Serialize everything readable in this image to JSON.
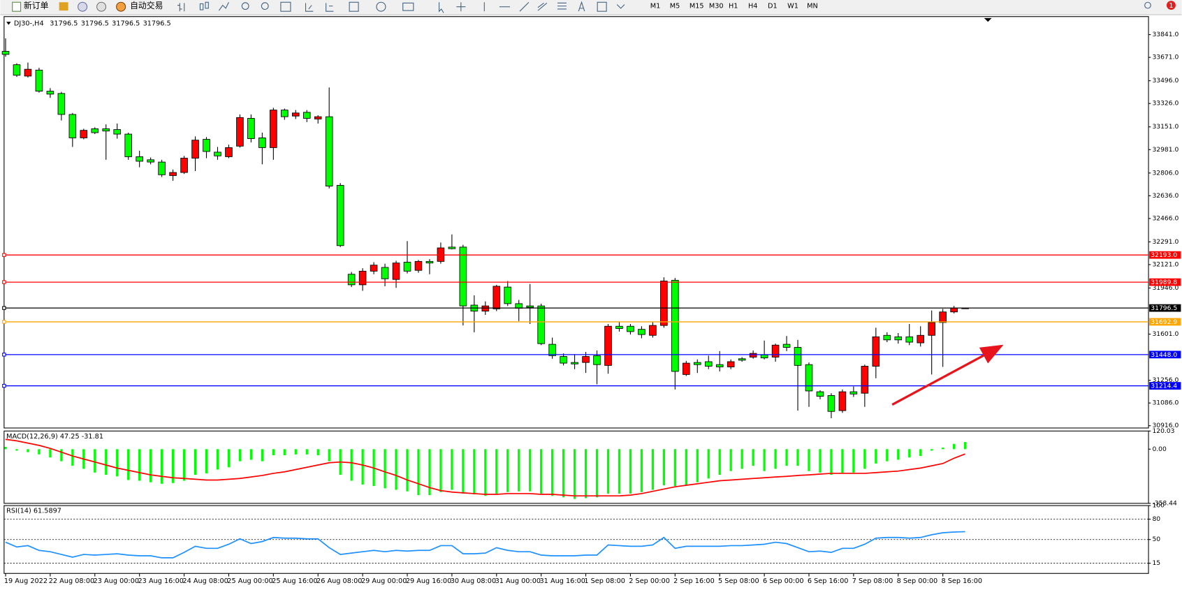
{
  "toolbar": {
    "new_order": "新订单",
    "auto_trading": "自动交易",
    "timeframes": [
      "M1",
      "M5",
      "M15",
      "M30",
      "H1",
      "H4",
      "D1",
      "W1",
      "MN"
    ],
    "notification_count": 1
  },
  "chart_data": [
    {
      "type": "candlestick",
      "title": "DJ30-,H4",
      "header_values": [
        31796.5,
        31796.5,
        31796.5,
        31796.5
      ],
      "categories": [
        "19 Aug 2022",
        null,
        null,
        null,
        "22 Aug 08:00",
        null,
        null,
        null,
        "23 Aug 00:00",
        null,
        null,
        null,
        "23 Aug 16:00",
        null,
        null,
        null,
        "24 Aug 08:00",
        null,
        null,
        null,
        "25 Aug 00:00",
        null,
        null,
        null,
        "25 Aug 16:00",
        null,
        null,
        null,
        "26 Aug 08:00",
        null,
        null,
        null,
        "29 Aug 00:00",
        null,
        null,
        null,
        "29 Aug 16:00",
        null,
        null,
        null,
        "30 Aug 08:00",
        null,
        null,
        null,
        "31 Aug 00:00",
        null,
        null,
        null,
        "31 Aug 16:00",
        null,
        null,
        null,
        "1 Sep 08:00",
        null,
        null,
        null,
        "2 Sep 00:00",
        null,
        null,
        null,
        "2 Sep 16:00",
        null,
        null,
        null,
        "5 Sep 08:00",
        null,
        null,
        null,
        "6 Sep 00:00",
        null,
        null,
        null,
        "6 Sep 16:00",
        null,
        null,
        null,
        "7 Sep 08:00",
        null,
        null,
        null,
        "8 Sep 00:00",
        null,
        null,
        null,
        "8 Sep 16:00",
        null,
        null
      ],
      "open": [
        33716,
        33616,
        33531,
        33576,
        33418,
        33401,
        33244,
        33069,
        33137,
        33137,
        33131,
        33097,
        32928,
        32905,
        32888,
        32787,
        32810,
        32917,
        33058,
        32962,
        32928,
        33007,
        33215,
        33069,
        32996,
        33277,
        33232,
        33260,
        33210,
        33227,
        32714,
        32049,
        31970,
        32072,
        32100,
        32010,
        32139,
        32078,
        32145,
        32145,
        32252,
        32252,
        31818,
        31773,
        31790,
        31953,
        31829,
        31812,
        31812,
        31525,
        31434,
        31389,
        31389,
        31440,
        31367,
        31660,
        31660,
        31637,
        31592,
        31666,
        32004,
        31299,
        31389,
        31395,
        31373,
        31356,
        31417,
        31429,
        31446,
        31429,
        31525,
        31502,
        31373,
        31170,
        31142,
        31029,
        31170,
        31159,
        31361,
        31592,
        31581,
        31581,
        31536,
        31592,
        31688,
        31767,
        31796.5
      ],
      "high": [
        33813,
        33627,
        33632,
        33593,
        33441,
        33413,
        33255,
        33137,
        33148,
        33170,
        33176,
        33108,
        32973,
        32922,
        32905,
        32832,
        32934,
        33080,
        33075,
        33001,
        33018,
        33244,
        33244,
        33108,
        33294,
        33288,
        33277,
        33277,
        33238,
        33446,
        32731,
        32066,
        32094,
        32139,
        32128,
        32150,
        32297,
        32156,
        32162,
        32286,
        32347,
        32269,
        31891,
        31846,
        31970,
        31998,
        31857,
        31976,
        31829,
        31575,
        31457,
        31451,
        31468,
        31479,
        31677,
        31694,
        31677,
        31660,
        31694,
        32026,
        32021,
        31401,
        31412,
        31440,
        31474,
        31412,
        31429,
        31479,
        31553,
        31530,
        31587,
        31558,
        31389,
        31181,
        31159,
        31187,
        31209,
        31373,
        31649,
        31615,
        31609,
        31677,
        31660,
        31778,
        31790,
        31812,
        31796.5
      ],
      "low": [
        33676,
        33525,
        33520,
        33407,
        33368,
        33199,
        33001,
        33058,
        33097,
        32905,
        33063,
        32905,
        32849,
        32871,
        32776,
        32748,
        32799,
        32821,
        32917,
        32905,
        32917,
        32996,
        33035,
        32871,
        32905,
        33204,
        33210,
        33187,
        33176,
        32691,
        32252,
        31953,
        31925,
        32049,
        31959,
        31947,
        32055,
        32060,
        32049,
        32128,
        32235,
        31666,
        31615,
        31745,
        31773,
        31812,
        31699,
        31677,
        31519,
        31417,
        31367,
        31339,
        31311,
        31226,
        31305,
        31620,
        31598,
        31570,
        31575,
        31649,
        31187,
        31288,
        31311,
        31339,
        31322,
        31339,
        31395,
        31417,
        31412,
        31395,
        31474,
        31029,
        31057,
        31114,
        30972,
        31012,
        31131,
        31057,
        31271,
        31541,
        31530,
        31519,
        31508,
        31299,
        31356,
        31756,
        31796.5
      ],
      "close": [
        33693,
        33537,
        33582,
        33418,
        33396,
        33244,
        33069,
        33125,
        33108,
        33120,
        33097,
        32928,
        32894,
        32888,
        32793,
        32810,
        32917,
        33052,
        32967,
        32934,
        32996,
        33221,
        33063,
        32996,
        33277,
        33227,
        33255,
        33215,
        33227,
        32708,
        32263,
        31970,
        32072,
        32117,
        32015,
        32133,
        32072,
        32145,
        32133,
        32246,
        32240,
        31812,
        31773,
        31812,
        31959,
        31829,
        31795,
        31801,
        31530,
        31440,
        31384,
        31378,
        31434,
        31373,
        31660,
        31643,
        31620,
        31598,
        31666,
        31998,
        31322,
        31384,
        31373,
        31361,
        31356,
        31395,
        31406,
        31457,
        31423,
        31519,
        31502,
        31367,
        31176,
        31136,
        31023,
        31170,
        31153,
        31361,
        31581,
        31558,
        31558,
        31541,
        31592,
        31688,
        31767,
        31796.5,
        31796.5
      ],
      "up_color": "#ff0000",
      "down_color": "#00ff00",
      "ylim": [
        30899,
        33976
      ],
      "yticks": [
        {
          "value": 33841,
          "label": "33841.0"
        },
        {
          "value": 33671,
          "label": "33671.0"
        },
        {
          "value": 33496,
          "label": "33496.0"
        },
        {
          "value": 33326,
          "label": "33326.0"
        },
        {
          "value": 33151,
          "label": "33151.0"
        },
        {
          "value": 32981,
          "label": "32981.0"
        },
        {
          "value": 32806,
          "label": "32806.0"
        },
        {
          "value": 32636,
          "label": "32636.0"
        },
        {
          "value": 32466,
          "label": "32466.0"
        },
        {
          "value": 32291,
          "label": "32291.0"
        },
        {
          "value": 32121,
          "label": "32121.0"
        },
        {
          "value": 31946,
          "label": "31946.0"
        },
        {
          "value": 31601,
          "label": "31601.0"
        },
        {
          "value": 31256,
          "label": "31256.0"
        },
        {
          "value": 31086,
          "label": "31086.0"
        },
        {
          "value": 30916,
          "label": "30916.0"
        }
      ],
      "levels": [
        {
          "value": 32193,
          "label": "32193.0",
          "color": "#ff0000"
        },
        {
          "value": 31989.8,
          "color": "#ff0000"
        },
        {
          "value": 31796.5,
          "color": "#000000"
        },
        {
          "value": 31692.9,
          "color": "#ffa500"
        },
        {
          "value": 31448,
          "label": "31448.0",
          "color": "#0000ff"
        },
        {
          "value": 31214.4,
          "color": "#0000ff"
        }
      ]
    },
    {
      "type": "macd",
      "title": "MACD(12,26,9) 47.25 -31.81",
      "ylim": [
        -358.44,
        120.03
      ],
      "yticks": [
        120.03,
        {
          "value": 0,
          "label": "0.00"
        },
        -358.44
      ],
      "series": [
        {
          "style": "histogram",
          "color": "#00ff00",
          "values": [
            15,
            -10,
            -20,
            -35,
            -55,
            -80,
            -110,
            -130,
            -155,
            -170,
            -180,
            -204,
            -209,
            -219,
            -229,
            -224,
            -209,
            -170,
            -160,
            -135,
            -120,
            -80,
            -70,
            -80,
            -40,
            -40,
            -35,
            -35,
            -40,
            -80,
            -170,
            -209,
            -234,
            -244,
            -259,
            -269,
            -279,
            -304,
            -304,
            -284,
            -269,
            -294,
            -299,
            -309,
            -294,
            -284,
            -279,
            -279,
            -294,
            -309,
            -319,
            -329,
            -324,
            -319,
            -294,
            -294,
            -294,
            -284,
            -269,
            -239,
            -244,
            -239,
            -219,
            -194,
            -170,
            -145,
            -130,
            -110,
            -145,
            -130,
            -110,
            -110,
            -145,
            -155,
            -170,
            -160,
            -155,
            -130,
            -95,
            -80,
            -70,
            -55,
            -45,
            -10,
            10,
            35,
            47.25
          ]
        },
        {
          "style": "line",
          "color": "#ff0000",
          "values": [
            65,
            55,
            40,
            25,
            5,
            -20,
            -45,
            -65,
            -85,
            -105,
            -125,
            -140,
            -155,
            -170,
            -180,
            -189,
            -194,
            -199,
            -204,
            -204,
            -199,
            -194,
            -184,
            -174,
            -160,
            -150,
            -135,
            -120,
            -105,
            -90,
            -85,
            -90,
            -105,
            -125,
            -150,
            -174,
            -204,
            -229,
            -254,
            -274,
            -284,
            -289,
            -294,
            -299,
            -299,
            -294,
            -294,
            -294,
            -299,
            -299,
            -304,
            -309,
            -309,
            -309,
            -309,
            -309,
            -304,
            -294,
            -279,
            -264,
            -249,
            -239,
            -229,
            -219,
            -209,
            -204,
            -199,
            -194,
            -189,
            -184,
            -180,
            -174,
            -170,
            -165,
            -160,
            -160,
            -160,
            -160,
            -155,
            -150,
            -145,
            -135,
            -125,
            -110,
            -95,
            -60,
            -31.81
          ]
        }
      ]
    },
    {
      "type": "rsi",
      "title": "RSI(14) 61.5897",
      "ylim": [
        0,
        100
      ],
      "yticks": [
        100,
        80,
        50,
        15
      ],
      "series": [
        {
          "style": "line",
          "color": "#1e90ff",
          "values": [
            46,
            39,
            41,
            34,
            32,
            28,
            24,
            28,
            27,
            28,
            29,
            27,
            26,
            26,
            23,
            23,
            31,
            40,
            37,
            37,
            43,
            51,
            44,
            47,
            53,
            52,
            52,
            51,
            51,
            38,
            28,
            30,
            32,
            34,
            32,
            34,
            33,
            34,
            34,
            41,
            41,
            29,
            29,
            30,
            38,
            34,
            32,
            32,
            27,
            26,
            26,
            26,
            27,
            27,
            42,
            41,
            40,
            40,
            42,
            53,
            37,
            40,
            40,
            40,
            40,
            41,
            41,
            42,
            43,
            46,
            44,
            38,
            32,
            33,
            31,
            37,
            37,
            43,
            52,
            53,
            53,
            52,
            53,
            57,
            60,
            61,
            61.5897
          ]
        }
      ]
    }
  ]
}
